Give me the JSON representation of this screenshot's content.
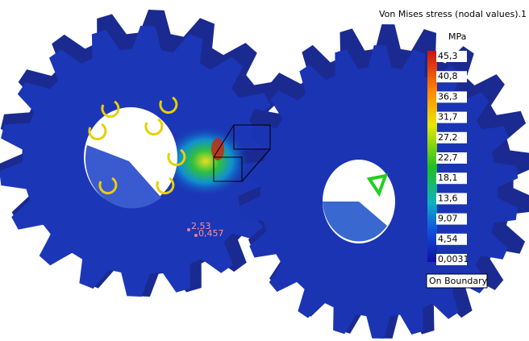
{
  "legend": {
    "title": "Von Mises stress (nodal values).1",
    "unit": "MPa",
    "labels": [
      "45,3",
      "40,8",
      "36,3",
      "31,7",
      "27,2",
      "22,7",
      "18,1",
      "13,6",
      "9,07",
      "4,54",
      "0,0031"
    ],
    "footer": "On Boundary"
  },
  "annotations": [
    "2,53",
    "0,457"
  ]
}
